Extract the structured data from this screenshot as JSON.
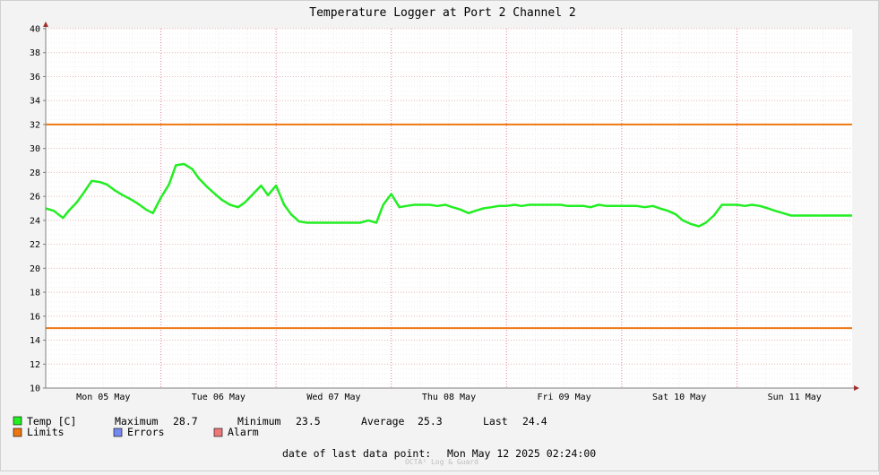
{
  "chart_data": {
    "type": "line",
    "title": "Temperature Logger at Port 2 Channel 2",
    "xlabel": "",
    "ylabel": "",
    "ylim": [
      10,
      40
    ],
    "yticks": [
      10,
      12,
      14,
      16,
      18,
      20,
      22,
      24,
      26,
      28,
      30,
      32,
      34,
      36,
      38,
      40
    ],
    "xlim": [
      0,
      7
    ],
    "x_unit": "days since Mon 05 May 2025 00:00",
    "xtick_labels": [
      "Mon 05 May",
      "Tue 06 May",
      "Wed 07 May",
      "Thu 08 May",
      "Fri 09 May",
      "Sat 10 May",
      "Sun 11 May"
    ],
    "grid": true,
    "colors": {
      "temp": "#22ee22",
      "limits": "#ee7711",
      "errors": "#7788ee",
      "alarm": "#ee7777",
      "grid": "#e8b4b4",
      "major_grid": "#e080a0",
      "axis": "#808080"
    },
    "series": [
      {
        "name": "Temp [C]",
        "x": [
          0.0,
          0.07,
          0.15,
          0.2,
          0.27,
          0.33,
          0.4,
          0.47,
          0.53,
          0.6,
          0.67,
          0.73,
          0.8,
          0.87,
          0.93,
          1.0,
          1.07,
          1.13,
          1.2,
          1.27,
          1.33,
          1.4,
          1.47,
          1.53,
          1.6,
          1.67,
          1.73,
          1.8,
          1.87,
          1.93,
          2.0,
          2.07,
          2.13,
          2.2,
          2.27,
          2.33,
          2.4,
          2.47,
          2.53,
          2.6,
          2.67,
          2.73,
          2.8,
          2.87,
          2.93,
          3.0,
          3.07,
          3.13,
          3.2,
          3.27,
          3.33,
          3.4,
          3.47,
          3.53,
          3.6,
          3.67,
          3.73,
          3.8,
          3.87,
          3.93,
          4.0,
          4.07,
          4.13,
          4.2,
          4.27,
          4.33,
          4.4,
          4.47,
          4.53,
          4.6,
          4.67,
          4.73,
          4.8,
          4.87,
          4.93,
          5.0,
          5.07,
          5.13,
          5.2,
          5.27,
          5.33,
          5.4,
          5.47,
          5.53,
          5.6,
          5.67,
          5.73,
          5.8,
          5.87,
          5.93,
          6.0,
          6.07,
          6.13,
          6.2,
          6.27,
          6.33,
          6.4,
          6.47,
          6.53,
          6.6,
          6.67,
          6.73,
          6.8,
          6.87,
          6.93,
          7.0
        ],
        "y": [
          25.0,
          24.8,
          24.2,
          24.8,
          25.5,
          26.3,
          27.3,
          27.2,
          27.0,
          26.5,
          26.1,
          25.8,
          25.4,
          24.9,
          24.6,
          25.9,
          27.0,
          28.6,
          28.7,
          28.3,
          27.5,
          26.8,
          26.2,
          25.7,
          25.3,
          25.1,
          25.5,
          26.2,
          26.9,
          26.1,
          26.9,
          25.3,
          24.5,
          23.9,
          23.8,
          23.8,
          23.8,
          23.8,
          23.8,
          23.8,
          23.8,
          23.8,
          24.0,
          23.8,
          25.3,
          26.2,
          25.1,
          25.2,
          25.3,
          25.3,
          25.3,
          25.2,
          25.3,
          25.1,
          24.9,
          24.6,
          24.8,
          25.0,
          25.1,
          25.2,
          25.2,
          25.3,
          25.2,
          25.3,
          25.3,
          25.3,
          25.3,
          25.3,
          25.2,
          25.2,
          25.2,
          25.1,
          25.3,
          25.2,
          25.2,
          25.2,
          25.2,
          25.2,
          25.1,
          25.2,
          25.0,
          24.8,
          24.5,
          24.0,
          23.7,
          23.5,
          23.8,
          24.4,
          25.3,
          25.3,
          25.3,
          25.2,
          25.3,
          25.2,
          25.0,
          24.8,
          24.6,
          24.4,
          24.4,
          24.4,
          24.4,
          24.4,
          24.4,
          24.4,
          24.4,
          24.4
        ]
      }
    ],
    "limits": {
      "name": "Limits",
      "upper": 32,
      "lower": 15
    },
    "legend": {
      "placement": "bottom",
      "stats": {
        "maximum_label": "Maximum",
        "maximum_value": "28.7",
        "minimum_label": "Minimum",
        "minimum_value": "23.5",
        "average_label": "Average",
        "average_value": "25.3",
        "last_label": "Last",
        "last_value": "24.4"
      },
      "temp_label": "Temp [C]",
      "limits_label": "Limits",
      "errors_label": "Errors",
      "alarm_label": "Alarm"
    },
    "footer": {
      "last_point_label": "date of last data point:",
      "last_point_value": "Mon May 12 2025 02:24:00",
      "credit": "OCTA² Log & Guard"
    }
  }
}
